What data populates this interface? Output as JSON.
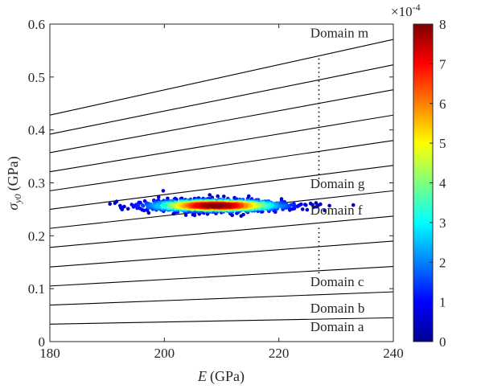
{
  "chart_data": {
    "type": "scatter",
    "xlabel_var": "E",
    "xlabel_unit": "(GPa)",
    "ylabel_var": "σ",
    "ylabel_sub": "y0",
    "ylabel_unit": "(GPa)",
    "xlim": [
      180,
      240
    ],
    "ylim": [
      0,
      0.6
    ],
    "xticks": [
      "180",
      "200",
      "220",
      "240"
    ],
    "yticks": [
      "0",
      "0.1",
      "0.2",
      "0.3",
      "0.4",
      "0.5",
      "0.6"
    ],
    "domain_lines": [
      {
        "y180": 0.033,
        "y240": 0.045
      },
      {
        "y180": 0.069,
        "y240": 0.094
      },
      {
        "y180": 0.105,
        "y240": 0.142
      },
      {
        "y180": 0.141,
        "y240": 0.19
      },
      {
        "y180": 0.178,
        "y240": 0.237
      },
      {
        "y180": 0.214,
        "y240": 0.285
      },
      {
        "y180": 0.25,
        "y240": 0.333
      },
      {
        "y180": 0.285,
        "y240": 0.38
      },
      {
        "y180": 0.321,
        "y240": 0.428
      },
      {
        "y180": 0.357,
        "y240": 0.476
      },
      {
        "y180": 0.392,
        "y240": 0.523
      },
      {
        "y180": 0.428,
        "y240": 0.571
      }
    ],
    "domain_labels": [
      {
        "text": "Domain m",
        "x": 225.5,
        "y": 0.575
      },
      {
        "text": "Domain g",
        "x": 225.5,
        "y": 0.29
      },
      {
        "text": "Domain f",
        "x": 225.5,
        "y": 0.24
      },
      {
        "text": "Domain c",
        "x": 225.5,
        "y": 0.105
      },
      {
        "text": "Domain b",
        "x": 225.5,
        "y": 0.055
      },
      {
        "text": "Domain a",
        "x": 225.5,
        "y": 0.02
      }
    ],
    "dotted_segments": [
      {
        "x": 227,
        "y0": 0.535,
        "y1": 0.3
      },
      {
        "x": 227,
        "y0": 0.215,
        "y1": 0.125
      }
    ],
    "density_cluster": {
      "x_center": 209,
      "y_center": 0.257,
      "x_range": [
        190,
        233
      ],
      "y_halfwidth": 0.011,
      "peak_density": 0.0008
    },
    "colorbar": {
      "colormap": "jet",
      "range": [
        0,
        8
      ],
      "ticks": [
        "0",
        "1",
        "2",
        "3",
        "4",
        "5",
        "6",
        "7",
        "8"
      ],
      "multiplier_base": "×10",
      "multiplier_exp": "-4"
    }
  }
}
